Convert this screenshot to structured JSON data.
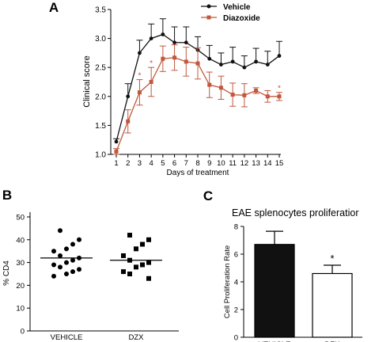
{
  "colors": {
    "vehicle": "#111111",
    "diazoxide": "#c0583c",
    "axis": "#000000"
  },
  "chart_data": [
    {
      "panel": "A",
      "type": "line",
      "xlabel": "Days of treatment",
      "ylabel": "Clinical score",
      "xlim": [
        1,
        15
      ],
      "ylim": [
        1.0,
        3.5
      ],
      "xticks": [
        "1",
        "2",
        "3",
        "4",
        "5",
        "6",
        "7",
        "8",
        "9",
        "10",
        "11",
        "12",
        "13",
        "14",
        "15"
      ],
      "yticks": [
        "1.0",
        "1.5",
        "2.0",
        "2.5",
        "3.0",
        "3.5"
      ],
      "legend_position": "top-right",
      "x": [
        1,
        2,
        3,
        4,
        5,
        6,
        7,
        8,
        9,
        10,
        11,
        12,
        13,
        14,
        15
      ],
      "series": [
        {
          "name": "Vehicle",
          "marker": "circle",
          "values": [
            1.22,
            2.0,
            2.75,
            3.0,
            3.07,
            2.93,
            2.93,
            2.8,
            2.65,
            2.55,
            2.6,
            2.5,
            2.6,
            2.55,
            2.7
          ],
          "errors": [
            0.05,
            0.22,
            0.22,
            0.25,
            0.27,
            0.27,
            0.27,
            0.23,
            0.23,
            0.2,
            0.25,
            0.2,
            0.23,
            0.23,
            0.25
          ]
        },
        {
          "name": "Diazoxide",
          "marker": "square",
          "values": [
            1.05,
            1.57,
            2.07,
            2.25,
            2.65,
            2.67,
            2.6,
            2.57,
            2.2,
            2.15,
            2.03,
            2.02,
            2.1,
            2.0,
            2.0
          ],
          "errors": [
            0.05,
            0.2,
            0.22,
            0.25,
            0.22,
            0.22,
            0.25,
            0.27,
            0.22,
            0.2,
            0.2,
            0.2,
            0.05,
            0.1,
            0.07
          ]
        }
      ],
      "significance_days": [
        3,
        4,
        15
      ],
      "significance_mark": "*"
    },
    {
      "panel": "B",
      "type": "scatter",
      "ylabel": "% CD4",
      "ylim": [
        0,
        50
      ],
      "yticks": [
        "0",
        "10",
        "20",
        "30",
        "40",
        "50"
      ],
      "categories": [
        "VEHICLE",
        "DZX"
      ],
      "series": [
        {
          "name": "VEHICLE",
          "marker": "circle",
          "values": [
            44,
            40,
            38,
            36,
            35,
            33,
            32,
            31,
            30,
            29,
            28,
            27,
            26,
            25,
            24
          ],
          "mean": 32
        },
        {
          "name": "DZX",
          "marker": "square",
          "values": [
            42,
            40,
            38,
            36,
            33,
            31,
            30,
            29,
            28,
            26,
            25,
            23
          ],
          "mean": 31
        }
      ]
    },
    {
      "panel": "C",
      "type": "bar",
      "title": "EAE splenocytes proliferatior",
      "ylabel": "Cell Proliferation Rate",
      "ylim": [
        0,
        8
      ],
      "yticks": [
        "0",
        "2",
        "4",
        "6",
        "8"
      ],
      "categories": [
        "VEHICLE",
        "DZX"
      ],
      "values": [
        6.7,
        4.6
      ],
      "errors": [
        0.95,
        0.6
      ],
      "fills": [
        "#111111",
        "#ffffff"
      ],
      "significance": [
        "",
        "*"
      ]
    }
  ]
}
